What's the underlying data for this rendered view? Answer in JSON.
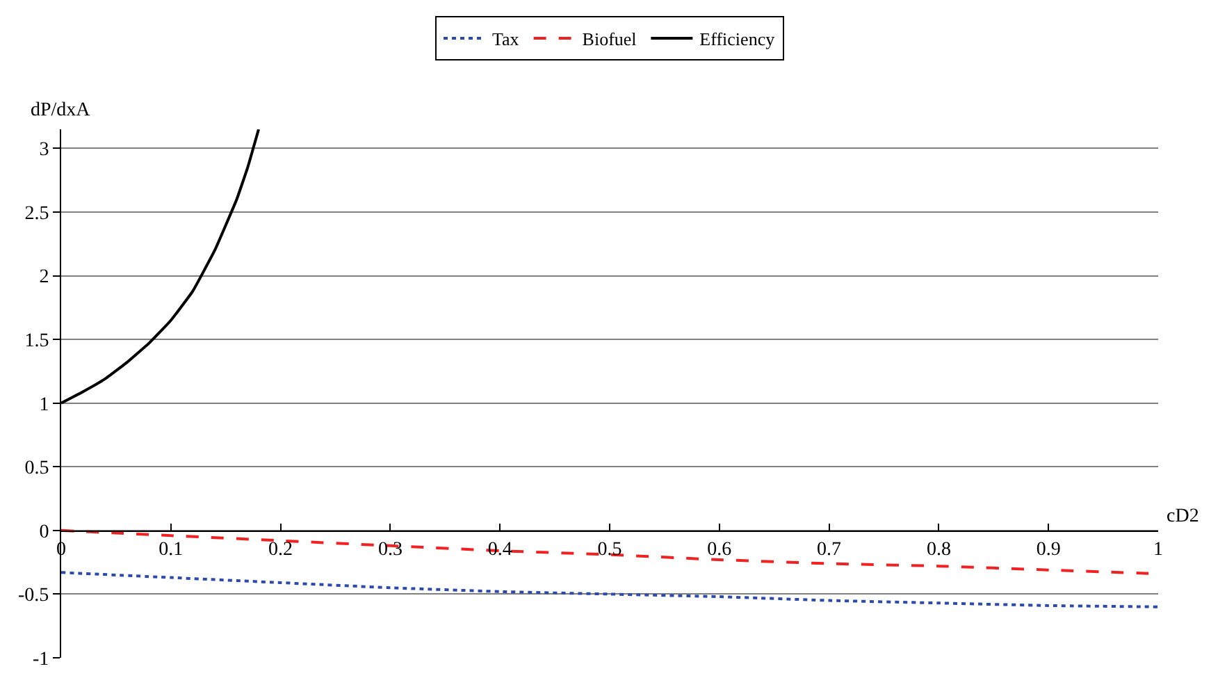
{
  "chart_data": {
    "type": "line",
    "xlabel": "cD2",
    "ylabel": "dP/dxA",
    "xlim": [
      0,
      1
    ],
    "xticks": [
      0,
      0.1,
      0.2,
      0.3,
      0.4,
      0.5,
      0.6,
      0.7,
      0.8,
      0.9,
      1
    ],
    "ylim": [
      -1,
      3.15
    ],
    "yticks": [
      -1,
      -0.5,
      0,
      0.5,
      1,
      1.5,
      2,
      2.5,
      3
    ],
    "grid": "y",
    "legend": "top",
    "marker": "none",
    "series": [
      {
        "name": "Tax",
        "color": "#2e4aa8",
        "line_style": "dotted",
        "x": [
          0,
          0.1,
          0.2,
          0.3,
          0.4,
          0.5,
          0.6,
          0.7,
          0.8,
          0.9,
          1
        ],
        "values": [
          -0.33,
          -0.37,
          -0.41,
          -0.45,
          -0.48,
          -0.5,
          -0.52,
          -0.55,
          -0.57,
          -0.59,
          -0.6
        ]
      },
      {
        "name": "Biofuel",
        "color": "#ee2222",
        "line_style": "dashed",
        "x": [
          0,
          0.1,
          0.2,
          0.3,
          0.4,
          0.5,
          0.6,
          0.7,
          0.8,
          0.9,
          1
        ],
        "values": [
          0,
          -0.04,
          -0.08,
          -0.12,
          -0.16,
          -0.19,
          -0.23,
          -0.26,
          -0.28,
          -0.31,
          -0.34
        ]
      },
      {
        "name": "Efficiency",
        "color": "#000000",
        "line_style": "solid",
        "x": [
          0,
          0.02,
          0.04,
          0.06,
          0.08,
          0.1,
          0.12,
          0.14,
          0.16,
          0.17,
          0.18
        ],
        "values": [
          1,
          1.09,
          1.19,
          1.32,
          1.47,
          1.65,
          1.88,
          2.2,
          2.6,
          2.85,
          3.15
        ]
      }
    ]
  }
}
